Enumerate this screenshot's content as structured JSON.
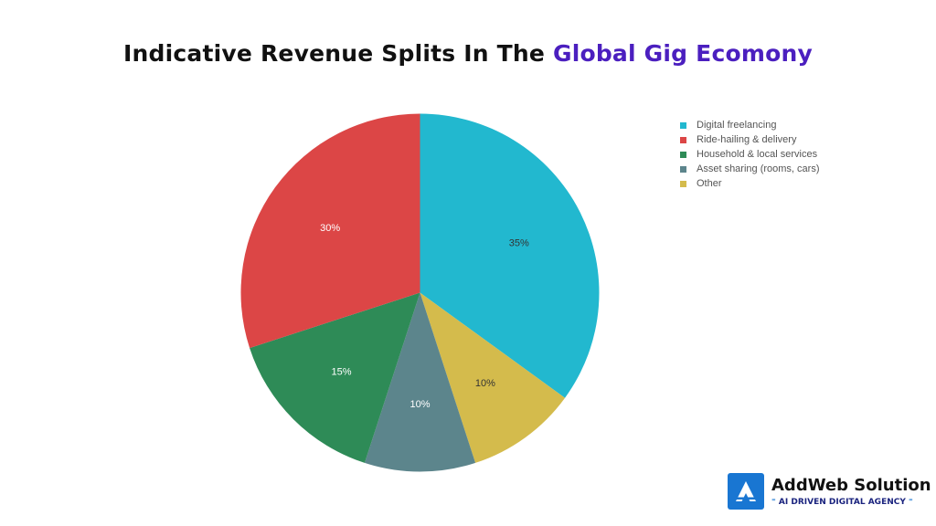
{
  "title": {
    "part1": "Indicative Revenue Splits In The",
    "part2": "Global Gig Ecomony"
  },
  "chart_data": {
    "type": "pie",
    "title": "Indicative Revenue Splits In The Global Gig Ecomony",
    "categories": [
      "Digital freelancing",
      "Ride-hailing & delivery",
      "Household & local services",
      "Asset sharing (rooms, cars)",
      "Other"
    ],
    "values": [
      35,
      30,
      15,
      10,
      10
    ],
    "labels": [
      "35%",
      "30%",
      "15%",
      "10%",
      "10%"
    ],
    "colors": [
      "#22b8cf",
      "#dc4646",
      "#2e8b57",
      "#5c858c",
      "#d4bb4c"
    ],
    "label_colors": [
      "#333333",
      "#ffffff",
      "#ffffff",
      "#ffffff",
      "#333333"
    ],
    "slice_order": [
      0,
      4,
      3,
      2,
      1
    ],
    "legend_position": "top-right"
  },
  "logo": {
    "brand": "AddWeb Solution",
    "tagline": "AI DRIVEN DIGITAL AGENCY",
    "tagline_left_mark": "⁼",
    "tagline_right_mark": "⁼",
    "icon": "addweb-logo-icon"
  }
}
